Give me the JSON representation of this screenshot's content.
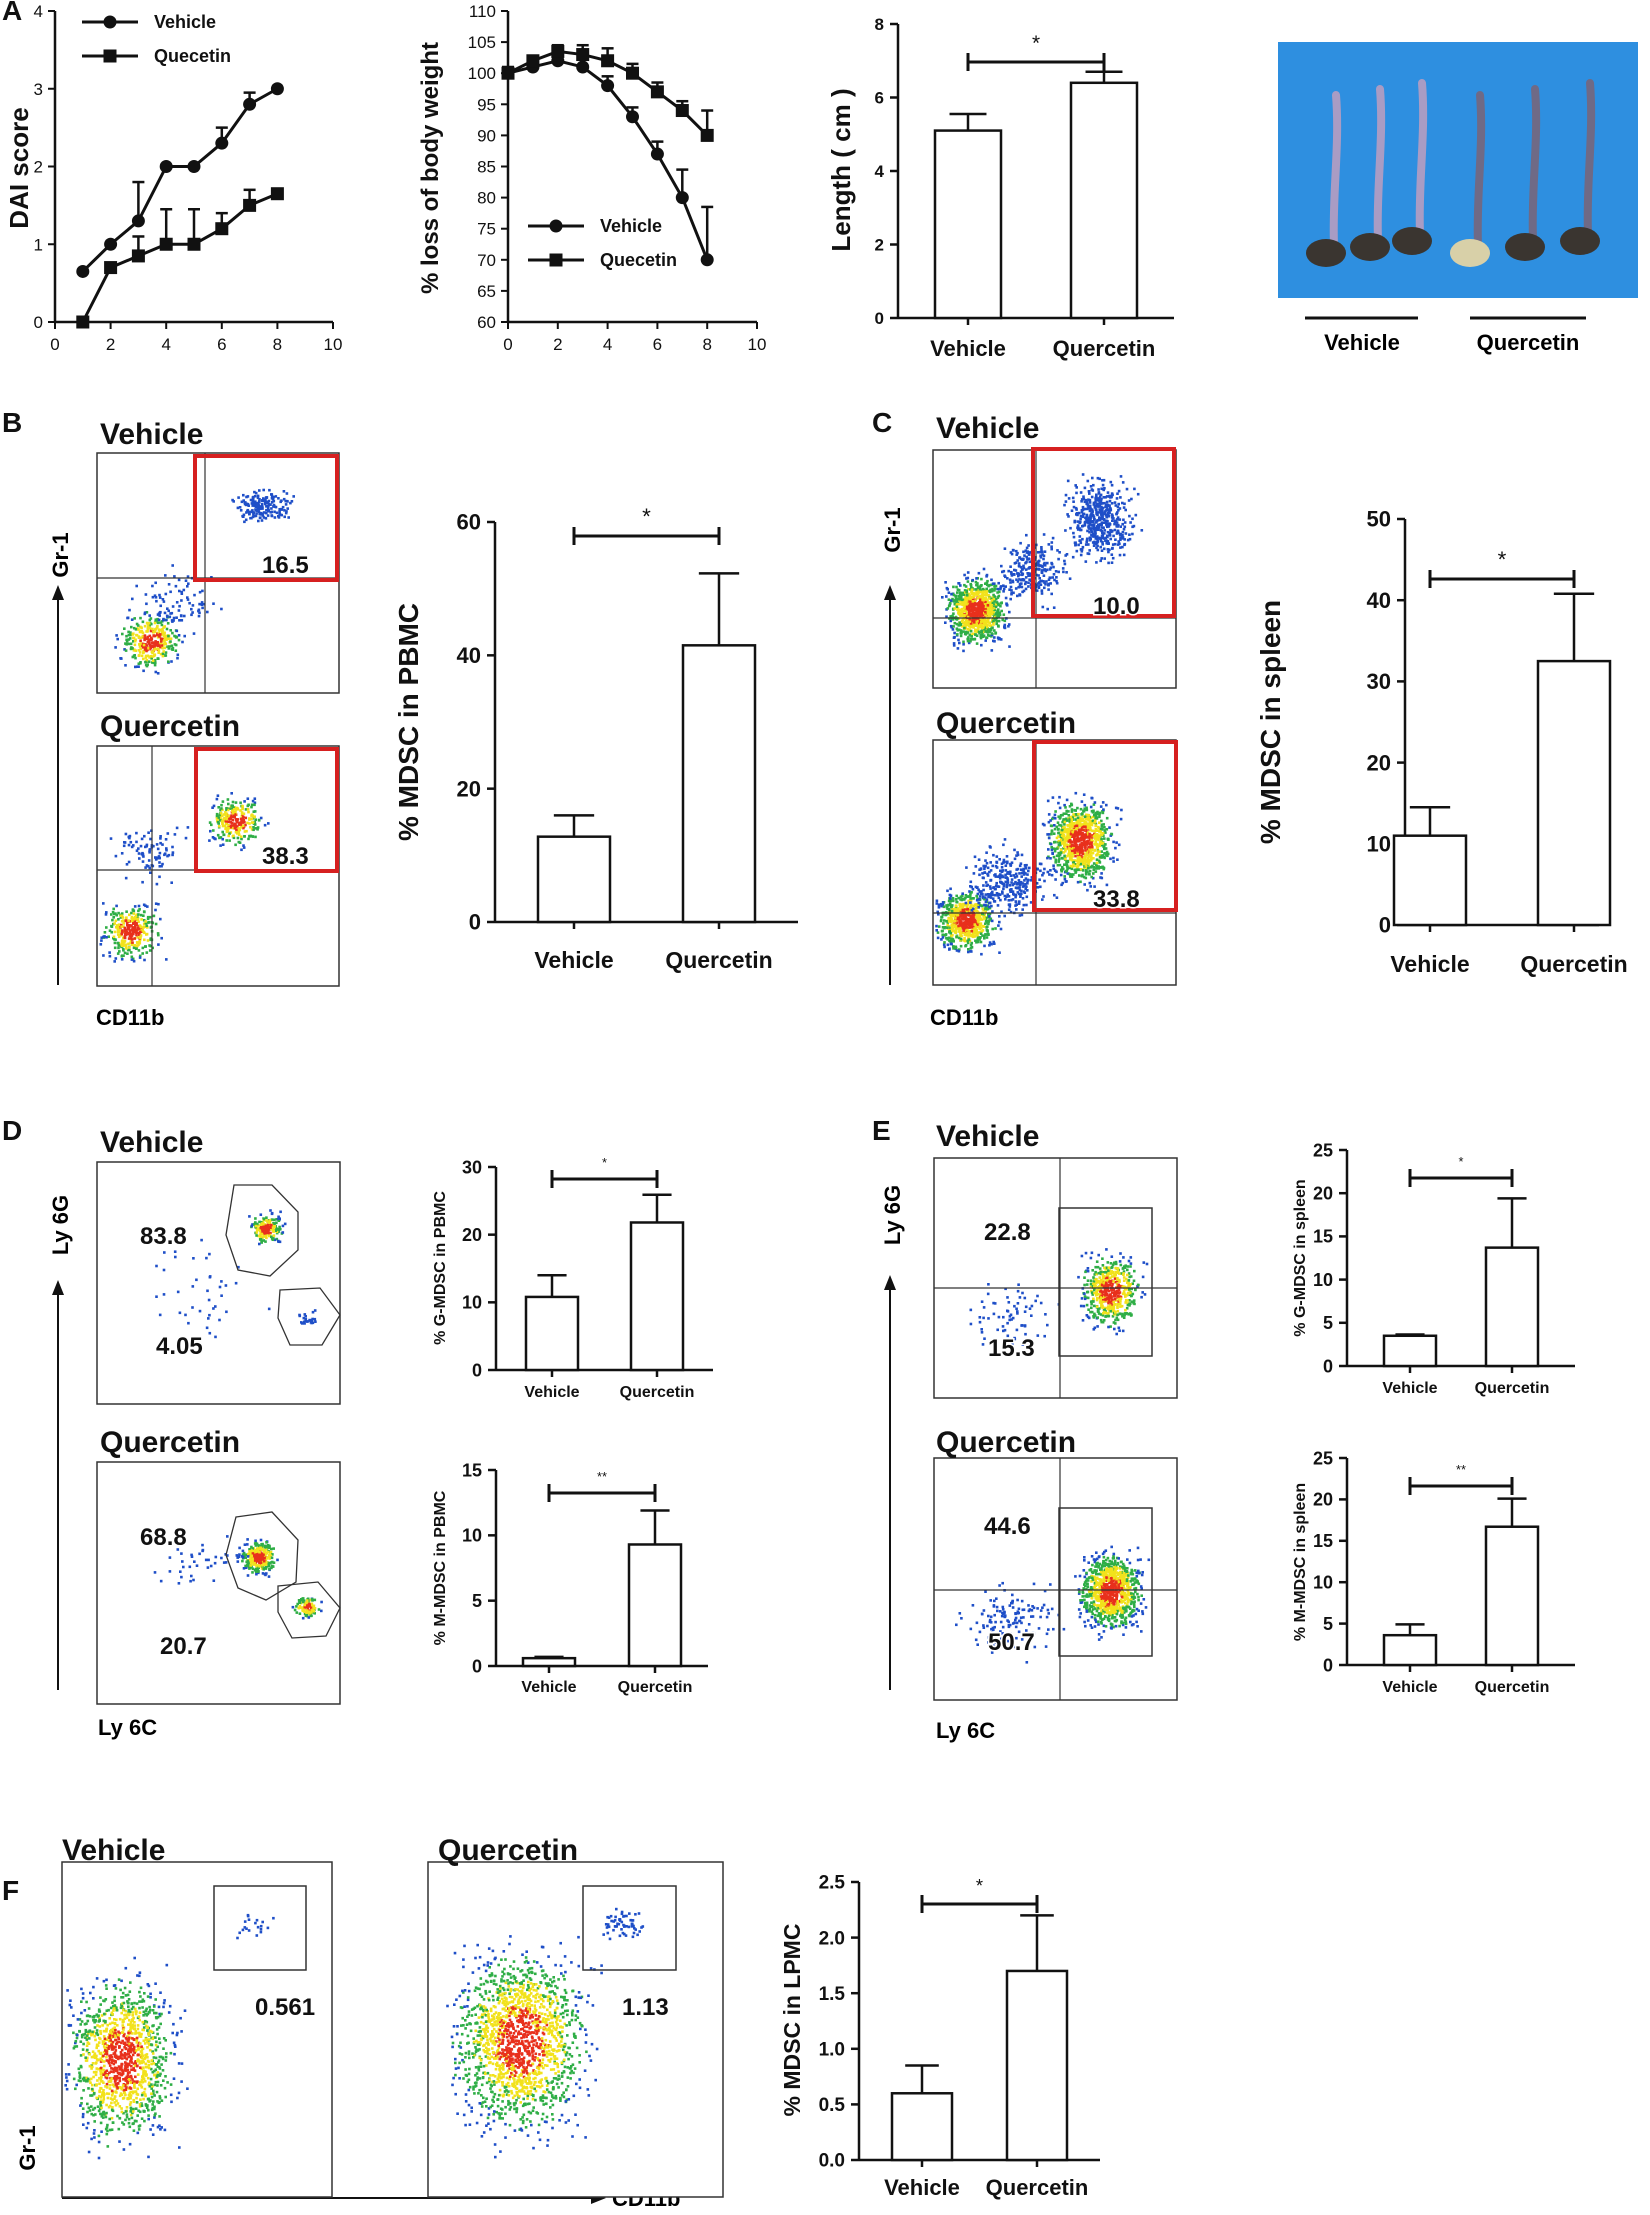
{
  "colors": {
    "axis": "#111111",
    "gate": "#d62020",
    "photo_bg": "#2e8fe0",
    "dot_low": "#1f4fc8",
    "dot_mid": "#2fae46",
    "dot_high": "#f2e21c",
    "dot_hot": "#e8301c"
  },
  "panels": {
    "A": "A",
    "B": "B",
    "C": "C",
    "D": "D",
    "E": "E",
    "F": "F"
  },
  "chart_data": [
    {
      "id": "dai",
      "type": "line",
      "xlabel": "",
      "ylabel": "DAI score",
      "xlim": [
        0,
        10
      ],
      "ylim": [
        0,
        4
      ],
      "xticks": [
        "0",
        "2",
        "4",
        "6",
        "8",
        "10"
      ],
      "yticks": [
        "0",
        "1",
        "2",
        "3",
        "4"
      ],
      "legend": [
        "Vehicle",
        "Quecetin"
      ],
      "series": [
        {
          "name": "Vehicle",
          "marker": "circle",
          "x": [
            1,
            2,
            3,
            4,
            5,
            6,
            7,
            8
          ],
          "y": [
            0.65,
            1.0,
            1.3,
            2.0,
            2.0,
            2.3,
            2.8,
            3.0
          ],
          "err": [
            0,
            0,
            0.5,
            0,
            0,
            0.2,
            0.15,
            0
          ]
        },
        {
          "name": "Quecetin",
          "marker": "square",
          "x": [
            1,
            2,
            3,
            4,
            5,
            6,
            7,
            8
          ],
          "y": [
            0.0,
            0.7,
            0.85,
            1.0,
            1.0,
            1.2,
            1.5,
            1.65
          ],
          "err": [
            0,
            0,
            0.25,
            0.45,
            0.45,
            0.2,
            0.2,
            0.05
          ]
        }
      ]
    },
    {
      "id": "weight",
      "type": "line",
      "xlabel": "",
      "ylabel": "% loss of body weight",
      "xlim": [
        0,
        10
      ],
      "ylim": [
        60,
        110
      ],
      "xticks": [
        "0",
        "2",
        "4",
        "6",
        "8",
        "10"
      ],
      "yticks": [
        "60",
        "65",
        "70",
        "75",
        "80",
        "85",
        "90",
        "95",
        "100",
        "105",
        "110"
      ],
      "legend": [
        "Vehicle",
        "Quecetin"
      ],
      "series": [
        {
          "name": "Vehicle",
          "marker": "circle",
          "x": [
            0,
            1,
            2,
            3,
            4,
            5,
            6,
            7,
            8
          ],
          "y": [
            100,
            101,
            102,
            101,
            98,
            93,
            87,
            80,
            70
          ],
          "err": [
            1,
            1.5,
            1.5,
            1.5,
            1.5,
            1.5,
            2,
            4.5,
            8.5
          ]
        },
        {
          "name": "Quecetin",
          "marker": "square",
          "x": [
            0,
            1,
            2,
            3,
            4,
            5,
            6,
            7,
            8
          ],
          "y": [
            100,
            102,
            103.5,
            103,
            102,
            100,
            97,
            94,
            90
          ],
          "err": [
            0,
            0.5,
            1,
            1.5,
            2,
            1.5,
            1.5,
            1.5,
            4
          ]
        }
      ]
    },
    {
      "id": "length",
      "type": "bar",
      "ylabel": "Length ( cm )",
      "ylim": [
        0,
        8
      ],
      "yticks": [
        "0",
        "2",
        "4",
        "6",
        "8"
      ],
      "categories": [
        "Vehicle",
        "Quercetin"
      ],
      "values": [
        5.1,
        6.4
      ],
      "err": [
        0.45,
        0.3
      ],
      "sig": "*"
    },
    {
      "id": "pbmc",
      "type": "bar",
      "ylabel": "% MDSC in PBMC",
      "ylim": [
        0,
        60
      ],
      "yticks": [
        "0",
        "20",
        "40",
        "60"
      ],
      "categories": [
        "Vehicle",
        "Quercetin"
      ],
      "values": [
        12.8,
        41.5
      ],
      "err": [
        3.2,
        10.8
      ],
      "sig": "*"
    },
    {
      "id": "spleen",
      "type": "bar",
      "ylabel": "% MDSC in spleen",
      "ylim": [
        0,
        50
      ],
      "yticks": [
        "0",
        "10",
        "20",
        "30",
        "40",
        "50"
      ],
      "categories": [
        "Vehicle",
        "Quercetin"
      ],
      "values": [
        11,
        32.5
      ],
      "err": [
        3.5,
        8.3
      ],
      "sig": "*"
    },
    {
      "id": "gmdsc_pbmc",
      "type": "bar",
      "ylabel": "% G-MDSC in PBMC",
      "ylim": [
        0,
        30
      ],
      "yticks": [
        "0",
        "10",
        "20",
        "30"
      ],
      "categories": [
        "Vehicle",
        "Quercetin"
      ],
      "values": [
        10.8,
        21.8
      ],
      "err": [
        3.2,
        4.1
      ],
      "sig": "*"
    },
    {
      "id": "mmdsc_pbmc",
      "type": "bar",
      "ylabel": "% M-MDSC in PBMC",
      "ylim": [
        0,
        15
      ],
      "yticks": [
        "0",
        "5",
        "10",
        "15"
      ],
      "categories": [
        "Vehicle",
        "Quercetin"
      ],
      "values": [
        0.6,
        9.3
      ],
      "err": [
        0.1,
        2.6
      ],
      "sig": "**"
    },
    {
      "id": "gmdsc_spleen",
      "type": "bar",
      "ylabel": "% G-MDSC in spleen",
      "ylim": [
        0,
        25
      ],
      "yticks": [
        "0",
        "5",
        "10",
        "15",
        "20",
        "25"
      ],
      "categories": [
        "Vehicle",
        "Quercetin"
      ],
      "values": [
        3.5,
        13.7
      ],
      "err": [
        0.15,
        5.7
      ],
      "sig": "*"
    },
    {
      "id": "mmdsc_spleen",
      "type": "bar",
      "ylabel": "% M-MDSC in spleen",
      "ylim": [
        0,
        25
      ],
      "yticks": [
        "0",
        "5",
        "10",
        "15",
        "20",
        "25"
      ],
      "categories": [
        "Vehicle",
        "Quercetin"
      ],
      "values": [
        3.6,
        16.7
      ],
      "err": [
        1.3,
        3.4
      ],
      "sig": "**"
    },
    {
      "id": "lpmc",
      "type": "bar",
      "ylabel": "% MDSC in LPMC",
      "ylim": [
        0,
        2.5
      ],
      "yticks": [
        "0.0",
        "0.5",
        "1.0",
        "1.5",
        "2.0",
        "2.5"
      ],
      "categories": [
        "Vehicle",
        "Quercetin"
      ],
      "values": [
        0.6,
        1.7
      ],
      "err": [
        0.25,
        0.5
      ],
      "sig": "*"
    }
  ],
  "photo": {
    "labels": [
      "Vehicle",
      "Quercetin"
    ]
  },
  "flow": [
    {
      "id": "fB1",
      "title": "Vehicle",
      "values": [
        "16.5"
      ]
    },
    {
      "id": "fB2",
      "title": "Quercetin",
      "values": [
        "38.3"
      ]
    },
    {
      "id": "fC1",
      "title": "Vehicle",
      "values": [
        "10.0"
      ]
    },
    {
      "id": "fC2",
      "title": "Quercetin",
      "values": [
        "33.8"
      ]
    },
    {
      "id": "fD1",
      "title": "Vehicle",
      "values": [
        "83.8",
        "4.05"
      ]
    },
    {
      "id": "fD2",
      "title": "Quercetin",
      "values": [
        "68.8",
        "20.7"
      ]
    },
    {
      "id": "fE1",
      "title": "Vehicle",
      "values": [
        "22.8",
        "15.3"
      ]
    },
    {
      "id": "fE2",
      "title": "Quercetin",
      "values": [
        "44.6",
        "50.7"
      ]
    },
    {
      "id": "fF1",
      "title": "Vehicle",
      "values": [
        "0.561"
      ]
    },
    {
      "id": "fF2",
      "title": "Quercetin",
      "values": [
        "1.13"
      ]
    }
  ],
  "flow_axes": {
    "B": {
      "y": "Gr-1",
      "x": "CD11b"
    },
    "C": {
      "y": "Gr-1",
      "x": "CD11b"
    },
    "D": {
      "y": "Ly 6G",
      "x": "Ly 6C"
    },
    "E": {
      "y": "Ly 6G",
      "x": "Ly 6C"
    },
    "F": {
      "y": "Gr-1",
      "x": "CD11b"
    }
  }
}
